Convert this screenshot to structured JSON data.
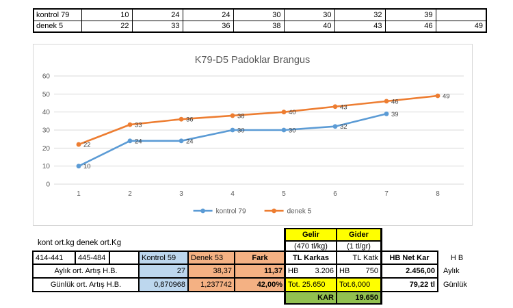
{
  "top_table": {
    "rows": [
      {
        "label": "kontrol 79",
        "values": [
          "10",
          "24",
          "24",
          "30",
          "30",
          "32",
          "39",
          ""
        ]
      },
      {
        "label": "denek 5",
        "values": [
          "22",
          "33",
          "36",
          "38",
          "40",
          "43",
          "46",
          "49"
        ]
      }
    ]
  },
  "chart_data": {
    "type": "line",
    "title": "K79-D5 Padoklar Brangus",
    "x": [
      1,
      2,
      3,
      4,
      5,
      6,
      7,
      8
    ],
    "series": [
      {
        "name": "kontrol 79",
        "color": "#5B9BD5",
        "values": [
          10,
          24,
          24,
          30,
          30,
          32,
          39
        ]
      },
      {
        "name": "denek 5",
        "color": "#ED7D31",
        "values": [
          22,
          33,
          36,
          38,
          40,
          43,
          46,
          49
        ]
      }
    ],
    "xlabel": "",
    "ylabel": "",
    "ylim": [
      0,
      60
    ],
    "yticks": [
      0,
      10,
      20,
      30,
      40,
      50,
      60
    ],
    "grid": true,
    "data_labels": true,
    "legend_position": "bottom"
  },
  "bottom": {
    "note": "kont ort.kg denek ort.Kg",
    "gelir": {
      "header": "Gelir",
      "unit": "(470 tl/kg)"
    },
    "gider": {
      "header": "Gider",
      "unit": "(1 tl/gr)"
    },
    "header_row": {
      "range1": "414-441",
      "range2": "445-484",
      "kontrol": "Kontrol 59",
      "denek": "Denek 53",
      "fark": "Fark",
      "tl_karkas": "TL Karkas",
      "tl_katk": "TL Katk",
      "hb_net_kar": "HB Net Kar",
      "hb_side": "H B"
    },
    "aylik_row": {
      "label": "Aylık ort. Artış H.B.",
      "kontrol": "27",
      "denek": "38,37",
      "fark": "11,37",
      "karkas_prefix": "HB",
      "karkas_value": "3.206",
      "katk_prefix": "HB",
      "katk_value": "750",
      "net_kar": "2.456,00",
      "side": "Aylık"
    },
    "gunluk_row": {
      "label": "Günlük ort. Artış H.B.",
      "kontrol": "0,870968",
      "denek": "1,237742",
      "fark": "42,00%",
      "karkas_value": "Tot. 25.650",
      "katk_value": "Tot.6,000",
      "net_kar": "79,22 tl",
      "side": "Günlük"
    },
    "kar_row": {
      "label": "KAR",
      "value": "19.650"
    }
  },
  "colors": {
    "series_blue": "#5B9BD5",
    "series_orange": "#ED7D31",
    "cell_blue": "#BDD7EE",
    "cell_salmon": "#F4B183",
    "cell_yellow": "#FFFF00",
    "cell_green": "#92C050",
    "axis_text": "#595959",
    "gridline": "#D9D9D9"
  }
}
